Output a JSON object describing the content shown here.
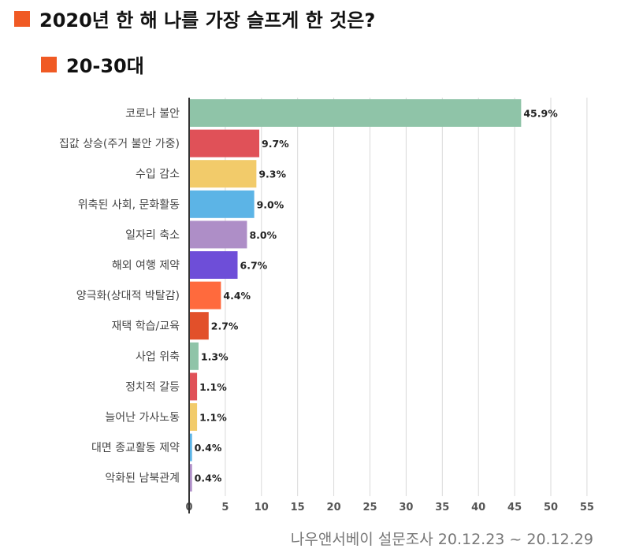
{
  "header": {
    "title": "2020년 한 해 나를 가장 슬프게 한 것은?",
    "subtitle": "20-30대",
    "accent_color": "#f05a24"
  },
  "footer": {
    "source": "나우앤서베이 설문조사 20.12.23 ~ 20.12.29"
  },
  "chart_data": {
    "type": "bar",
    "orientation": "horizontal",
    "categories": [
      "코로나 불안",
      "집값 상승(주거 불안 가중)",
      "수입 감소",
      "위축된 사회, 문화활동",
      "일자리 축소",
      "해외 여행 제약",
      "양극화(상대적 박탈감)",
      "재택 학습/교육",
      "사업 위축",
      "정치적 갈등",
      "늘어난 가사노동",
      "대면 종교활동 제약",
      "악화된 남북관계"
    ],
    "values": [
      45.9,
      9.7,
      9.3,
      9.0,
      8.0,
      6.7,
      4.4,
      2.7,
      1.3,
      1.1,
      1.1,
      0.4,
      0.4
    ],
    "value_labels": [
      "45.9%",
      "9.7%",
      "9.3%",
      "9.0%",
      "8.0%",
      "6.7%",
      "4.4%",
      "2.7%",
      "1.3%",
      "1.1%",
      "1.1%",
      "0.4%",
      "0.4%"
    ],
    "colors": [
      "#8fc4a8",
      "#e05158",
      "#f2cb6a",
      "#5cb4e6",
      "#ae8ec7",
      "#6e4ed8",
      "#ff6a3d",
      "#e2502a",
      "#8fc4a8",
      "#e05158",
      "#f2cb6a",
      "#5cb4e6",
      "#ae8ec7"
    ],
    "xlim": [
      0,
      55
    ],
    "x_ticks": [
      "0",
      "5",
      "10",
      "15",
      "20",
      "25",
      "30",
      "35",
      "40",
      "45",
      "50",
      "55"
    ],
    "grid": true,
    "legend": "none"
  }
}
